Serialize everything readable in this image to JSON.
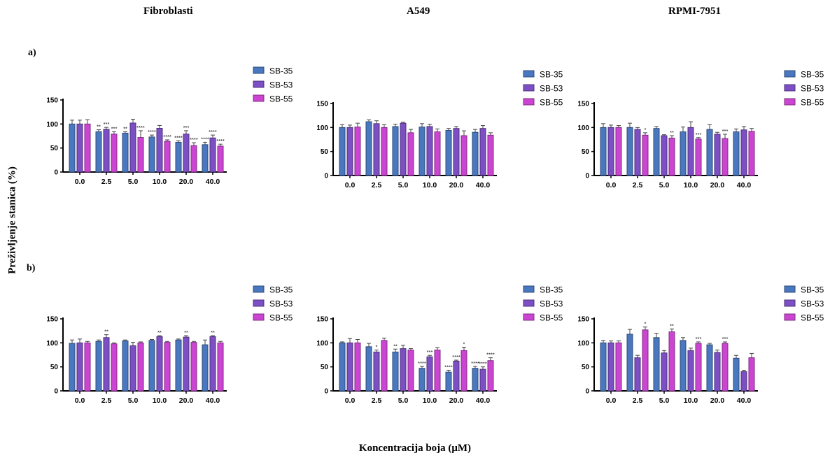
{
  "column_titles": [
    "Fibroblasti",
    "A549",
    "RPMI-7951"
  ],
  "row_labels": [
    "a)",
    "b)"
  ],
  "y_axis_label": "Preživljenje stanica (%)",
  "x_axis_label": "Koncentracija boja (μM)",
  "colors": {
    "SB-35": "#4a78c0",
    "SB-53": "#7c4fc4",
    "SB-55": "#cc45d2"
  },
  "chart_data": [
    {
      "type": "bar",
      "panel": "a) Fibroblasti",
      "categories": [
        "0.0",
        "2.5",
        "5.0",
        "10.0",
        "20.0",
        "40.0"
      ],
      "ylim": [
        0,
        150
      ],
      "yticks": [
        0,
        50,
        100,
        150
      ],
      "legend": "right",
      "series": [
        {
          "name": "SB-35",
          "values": [
            100,
            84,
            81,
            73,
            62,
            57
          ],
          "errors": [
            8,
            4,
            3,
            4,
            3,
            5
          ],
          "significance": [
            "",
            "**",
            "**",
            "****",
            "****",
            "****"
          ]
        },
        {
          "name": "SB-53",
          "values": [
            100,
            89,
            102,
            91,
            79,
            71
          ],
          "errors": [
            8,
            4,
            8,
            6,
            7,
            6
          ],
          "significance": [
            "",
            "***",
            "",
            "",
            "***",
            "****"
          ]
        },
        {
          "name": "SB-55",
          "values": [
            100,
            79,
            72,
            64,
            55,
            54
          ],
          "errors": [
            9,
            5,
            14,
            3,
            6,
            4
          ],
          "significance": [
            "",
            "***",
            "****",
            "****",
            "****",
            "****"
          ]
        }
      ]
    },
    {
      "type": "bar",
      "panel": "a) A549",
      "categories": [
        "0.0",
        "2.5",
        "5.0",
        "10.0",
        "20.0",
        "40.0"
      ],
      "ylim": [
        0,
        150
      ],
      "yticks": [
        0,
        50,
        100,
        150
      ],
      "legend": "right",
      "series": [
        {
          "name": "SB-35",
          "values": [
            100,
            112,
            102,
            101,
            94,
            90
          ],
          "errors": [
            6,
            4,
            5,
            7,
            4,
            6
          ],
          "significance": [
            "",
            "",
            "",
            "",
            "",
            ""
          ]
        },
        {
          "name": "SB-53",
          "values": [
            100,
            108,
            109,
            102,
            98,
            98
          ],
          "errors": [
            5,
            6,
            2,
            5,
            4,
            6
          ],
          "significance": [
            "",
            "",
            "",
            "",
            "",
            ""
          ]
        },
        {
          "name": "SB-55",
          "values": [
            101,
            100,
            89,
            91,
            83,
            84
          ],
          "errors": [
            8,
            6,
            7,
            6,
            10,
            5
          ],
          "significance": [
            "",
            "",
            "",
            "",
            "",
            ""
          ]
        }
      ]
    },
    {
      "type": "bar",
      "panel": "a) RPMI-7951",
      "categories": [
        "0.0",
        "2.5",
        "5.0",
        "10.0",
        "20.0",
        "40.0"
      ],
      "ylim": [
        0,
        150
      ],
      "yticks": [
        0,
        50,
        100,
        150
      ],
      "legend": "right",
      "series": [
        {
          "name": "SB-35",
          "values": [
            100,
            100,
            98,
            91,
            96,
            91
          ],
          "errors": [
            8,
            9,
            4,
            10,
            10,
            6
          ],
          "significance": [
            "",
            "",
            "",
            "",
            "",
            ""
          ]
        },
        {
          "name": "SB-53",
          "values": [
            100,
            96,
            83,
            100,
            86,
            95
          ],
          "errors": [
            5,
            4,
            2,
            12,
            4,
            7
          ],
          "significance": [
            "",
            "",
            "",
            "",
            "",
            ""
          ]
        },
        {
          "name": "SB-55",
          "values": [
            100,
            84,
            78,
            76,
            77,
            92
          ],
          "errors": [
            4,
            5,
            5,
            3,
            9,
            6
          ],
          "significance": [
            "",
            "*",
            "**",
            "***",
            "***",
            ""
          ]
        }
      ]
    },
    {
      "type": "bar",
      "panel": "b) Fibroblasti",
      "categories": [
        "0.0",
        "2.5",
        "5.0",
        "10.0",
        "20.0",
        "40.0"
      ],
      "ylim": [
        0,
        150
      ],
      "yticks": [
        0,
        50,
        100,
        150
      ],
      "legend": "right",
      "series": [
        {
          "name": "SB-35",
          "values": [
            99,
            103,
            104,
            105,
            106,
            96
          ],
          "errors": [
            7,
            3,
            2,
            2,
            2,
            10
          ],
          "significance": [
            "",
            "",
            "",
            "",
            "",
            ""
          ]
        },
        {
          "name": "SB-53",
          "values": [
            100,
            111,
            94,
            113,
            112,
            113
          ],
          "errors": [
            8,
            6,
            7,
            2,
            3,
            2
          ],
          "significance": [
            "",
            "**",
            "",
            "**",
            "**",
            "**"
          ]
        },
        {
          "name": "SB-55",
          "values": [
            100,
            98,
            100,
            101,
            101,
            100
          ],
          "errors": [
            3,
            2,
            2,
            2,
            2,
            3
          ],
          "significance": [
            "",
            "",
            "",
            "",
            "",
            ""
          ]
        }
      ]
    },
    {
      "type": "bar",
      "panel": "b) A549",
      "categories": [
        "0.0",
        "2.5",
        "5.0",
        "10.0",
        "20.0",
        "40.0"
      ],
      "ylim": [
        0,
        150
      ],
      "yticks": [
        0,
        50,
        100,
        150
      ],
      "legend": "right",
      "series": [
        {
          "name": "SB-35",
          "values": [
            100,
            92,
            81,
            47,
            39,
            47
          ],
          "errors": [
            2,
            7,
            6,
            4,
            4,
            4
          ],
          "significance": [
            "",
            "",
            "**",
            "****",
            "****",
            "****"
          ]
        },
        {
          "name": "SB-53",
          "values": [
            100,
            81,
            88,
            71,
            62,
            45
          ],
          "errors": [
            9,
            4,
            7,
            3,
            2,
            5
          ],
          "significance": [
            "",
            "*",
            "",
            "***",
            "****",
            "****"
          ]
        },
        {
          "name": "SB-55",
          "values": [
            100,
            105,
            85,
            85,
            84,
            63
          ],
          "errors": [
            7,
            5,
            3,
            5,
            7,
            6
          ],
          "significance": [
            "",
            "",
            "",
            "",
            "*",
            "****"
          ]
        }
      ]
    },
    {
      "type": "bar",
      "panel": "b) RPMI-7951",
      "categories": [
        "0.0",
        "2.5",
        "5.0",
        "10.0",
        "20.0",
        "40.0"
      ],
      "ylim": [
        0,
        150
      ],
      "yticks": [
        0,
        50,
        100,
        150
      ],
      "legend": "right",
      "series": [
        {
          "name": "SB-35",
          "values": [
            100,
            118,
            111,
            105,
            96,
            68
          ],
          "errors": [
            5,
            10,
            9,
            6,
            3,
            6
          ],
          "significance": [
            "",
            "",
            "",
            "",
            "",
            ""
          ]
        },
        {
          "name": "SB-53",
          "values": [
            100,
            69,
            79,
            84,
            80,
            40
          ],
          "errors": [
            4,
            5,
            5,
            5,
            5,
            3
          ],
          "significance": [
            "",
            "",
            "",
            "",
            "",
            ""
          ]
        },
        {
          "name": "SB-55",
          "values": [
            100,
            127,
            123,
            99,
            99,
            69
          ],
          "errors": [
            4,
            6,
            6,
            3,
            3,
            9
          ],
          "significance": [
            "",
            "*",
            "**",
            "***",
            "***",
            ""
          ]
        }
      ]
    }
  ]
}
